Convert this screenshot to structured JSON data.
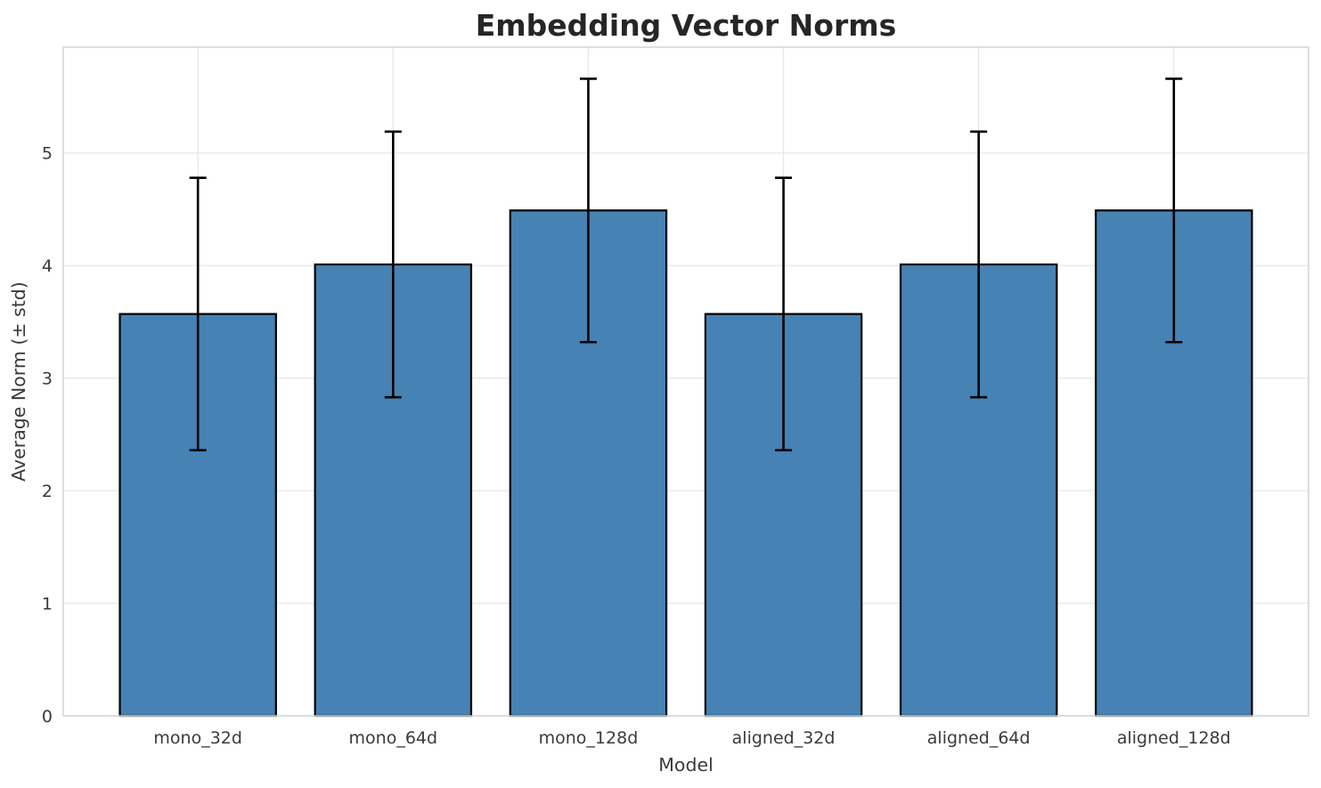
{
  "chart_data": {
    "type": "bar",
    "title": "Embedding Vector Norms",
    "xlabel": "Model",
    "ylabel": "Average Norm (± std)",
    "categories": [
      "mono_32d",
      "mono_64d",
      "mono_128d",
      "aligned_32d",
      "aligned_64d",
      "aligned_128d"
    ],
    "values": [
      3.57,
      4.01,
      4.49,
      3.57,
      4.01,
      4.49
    ],
    "errors": [
      1.21,
      1.18,
      1.17,
      1.21,
      1.18,
      1.17
    ],
    "yticks": [
      0,
      1,
      2,
      3,
      4,
      5
    ],
    "ylim": [
      0,
      5.94
    ],
    "bar_width_fraction": 0.8,
    "grid": true,
    "legend": false,
    "colors": {
      "bar_fill": "#4682b4",
      "bar_edge": "#000000",
      "error_bar": "#000000",
      "grid_line": "#e7e7e7",
      "spine": "#d6d6d6",
      "title_text": "#262626",
      "tick_text": "#3a3a3a"
    }
  }
}
